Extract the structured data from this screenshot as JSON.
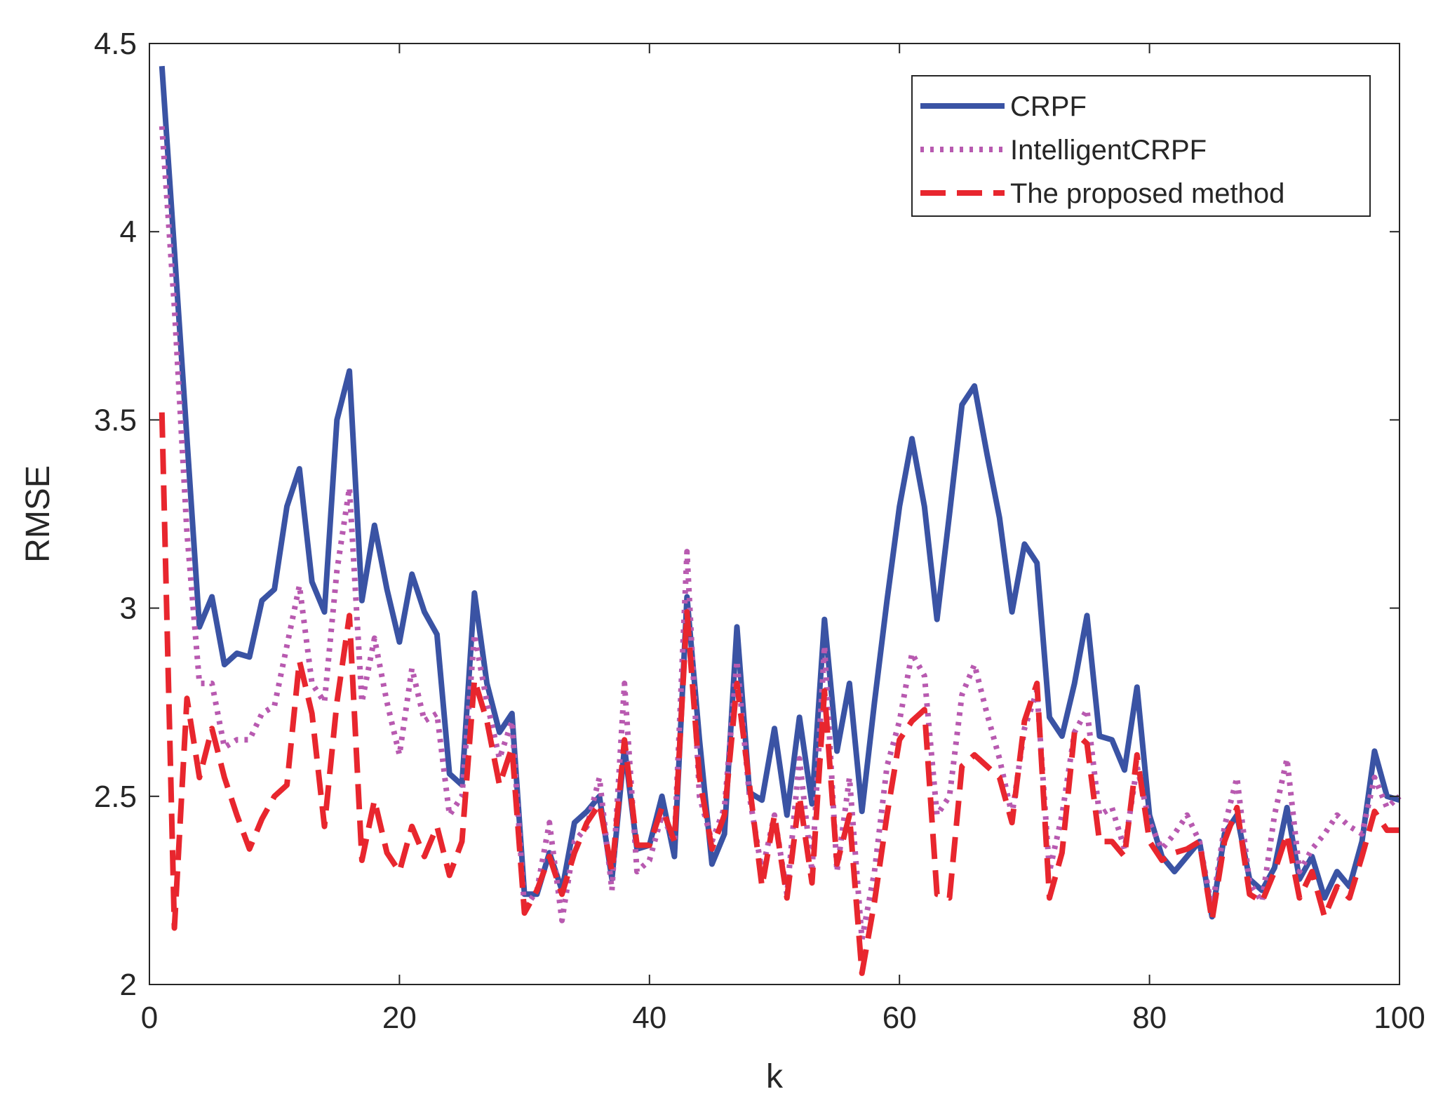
{
  "chart_data": {
    "type": "line",
    "title": "",
    "xlabel": "k",
    "ylabel": "RMSE",
    "xlim": [
      0,
      100
    ],
    "ylim": [
      2,
      4.5
    ],
    "xticks": [
      0,
      20,
      40,
      60,
      80,
      100
    ],
    "xtick_labels": [
      "0",
      "20",
      "40",
      "60",
      "80",
      "100"
    ],
    "yticks": [
      2,
      2.5,
      3,
      3.5,
      4,
      4.5
    ],
    "ytick_labels": [
      "2",
      "2.5",
      "3",
      "3.5",
      "4",
      "4.5"
    ],
    "grid": false,
    "legend_position": "top-right",
    "x": [
      1,
      2,
      3,
      4,
      5,
      6,
      7,
      8,
      9,
      10,
      11,
      12,
      13,
      14,
      15,
      16,
      17,
      18,
      19,
      20,
      21,
      22,
      23,
      24,
      25,
      26,
      27,
      28,
      29,
      30,
      31,
      32,
      33,
      34,
      35,
      36,
      37,
      38,
      39,
      40,
      41,
      42,
      43,
      44,
      45,
      46,
      47,
      48,
      49,
      50,
      51,
      52,
      53,
      54,
      55,
      56,
      57,
      58,
      59,
      60,
      61,
      62,
      63,
      64,
      65,
      66,
      67,
      68,
      69,
      70,
      71,
      72,
      73,
      74,
      75,
      76,
      77,
      78,
      79,
      80,
      81,
      82,
      83,
      84,
      85,
      86,
      87,
      88,
      89,
      90,
      91,
      92,
      93,
      94,
      95,
      96,
      97,
      98,
      99,
      100
    ],
    "series": [
      {
        "name": "CRPF",
        "color": "#3a53a4",
        "style": "solid",
        "values": [
          4.44,
          3.95,
          3.45,
          2.95,
          3.03,
          2.85,
          2.88,
          2.87,
          3.02,
          3.05,
          3.27,
          3.37,
          3.07,
          2.99,
          3.5,
          3.63,
          3.02,
          3.22,
          3.05,
          2.91,
          3.09,
          2.99,
          2.93,
          2.56,
          2.53,
          3.04,
          2.8,
          2.67,
          2.72,
          2.24,
          2.24,
          2.35,
          2.25,
          2.43,
          2.46,
          2.5,
          2.28,
          2.63,
          2.36,
          2.37,
          2.5,
          2.34,
          3.03,
          2.65,
          2.32,
          2.4,
          2.95,
          2.51,
          2.49,
          2.68,
          2.45,
          2.71,
          2.48,
          2.97,
          2.62,
          2.8,
          2.46,
          2.75,
          3.02,
          3.27,
          3.45,
          3.27,
          2.97,
          3.25,
          3.54,
          3.59,
          3.41,
          3.24,
          2.99,
          3.17,
          3.12,
          2.71,
          2.66,
          2.8,
          2.98,
          2.66,
          2.65,
          2.57,
          2.79,
          2.45,
          2.34,
          2.3,
          2.34,
          2.38,
          2.18,
          2.4,
          2.45,
          2.28,
          2.25,
          2.31,
          2.47,
          2.28,
          2.34,
          2.23,
          2.3,
          2.26,
          2.38,
          2.62,
          2.5,
          2.49
        ]
      },
      {
        "name": "IntelligentCRPF",
        "color": "#b85ab0",
        "style": "dotted",
        "values": [
          4.28,
          3.8,
          3.2,
          2.8,
          2.8,
          2.63,
          2.65,
          2.65,
          2.72,
          2.74,
          2.9,
          3.06,
          2.8,
          2.75,
          3.1,
          3.32,
          2.75,
          2.92,
          2.75,
          2.61,
          2.84,
          2.7,
          2.72,
          2.45,
          2.5,
          2.93,
          2.75,
          2.6,
          2.7,
          2.2,
          2.25,
          2.43,
          2.17,
          2.38,
          2.42,
          2.55,
          2.25,
          2.8,
          2.3,
          2.33,
          2.45,
          2.38,
          3.15,
          2.5,
          2.38,
          2.47,
          2.86,
          2.5,
          2.3,
          2.45,
          2.24,
          2.6,
          2.3,
          2.9,
          2.3,
          2.55,
          2.12,
          2.3,
          2.58,
          2.7,
          2.88,
          2.82,
          2.45,
          2.5,
          2.77,
          2.85,
          2.72,
          2.6,
          2.45,
          2.68,
          2.78,
          2.3,
          2.45,
          2.67,
          2.73,
          2.45,
          2.47,
          2.36,
          2.58,
          2.43,
          2.36,
          2.4,
          2.45,
          2.38,
          2.2,
          2.42,
          2.55,
          2.27,
          2.22,
          2.45,
          2.6,
          2.3,
          2.36,
          2.4,
          2.45,
          2.42,
          2.4,
          2.55,
          2.47,
          2.5
        ]
      },
      {
        "name": "The proposed method",
        "color": "#e8262e",
        "style": "dashed",
        "values": [
          3.52,
          2.15,
          2.76,
          2.55,
          2.68,
          2.55,
          2.45,
          2.36,
          2.44,
          2.5,
          2.53,
          2.86,
          2.72,
          2.42,
          2.75,
          2.98,
          2.33,
          2.49,
          2.35,
          2.3,
          2.42,
          2.34,
          2.42,
          2.29,
          2.38,
          2.81,
          2.7,
          2.53,
          2.63,
          2.19,
          2.25,
          2.34,
          2.24,
          2.35,
          2.43,
          2.48,
          2.3,
          2.65,
          2.37,
          2.37,
          2.47,
          2.38,
          2.99,
          2.55,
          2.36,
          2.45,
          2.8,
          2.53,
          2.26,
          2.45,
          2.23,
          2.5,
          2.27,
          2.78,
          2.32,
          2.45,
          2.03,
          2.22,
          2.45,
          2.65,
          2.7,
          2.73,
          2.24,
          2.23,
          2.58,
          2.61,
          2.58,
          2.55,
          2.43,
          2.7,
          2.8,
          2.23,
          2.35,
          2.67,
          2.64,
          2.38,
          2.38,
          2.34,
          2.61,
          2.38,
          2.33,
          2.35,
          2.36,
          2.38,
          2.17,
          2.38,
          2.47,
          2.24,
          2.22,
          2.3,
          2.4,
          2.23,
          2.3,
          2.18,
          2.26,
          2.23,
          2.34,
          2.46,
          2.41,
          2.41
        ]
      }
    ]
  }
}
